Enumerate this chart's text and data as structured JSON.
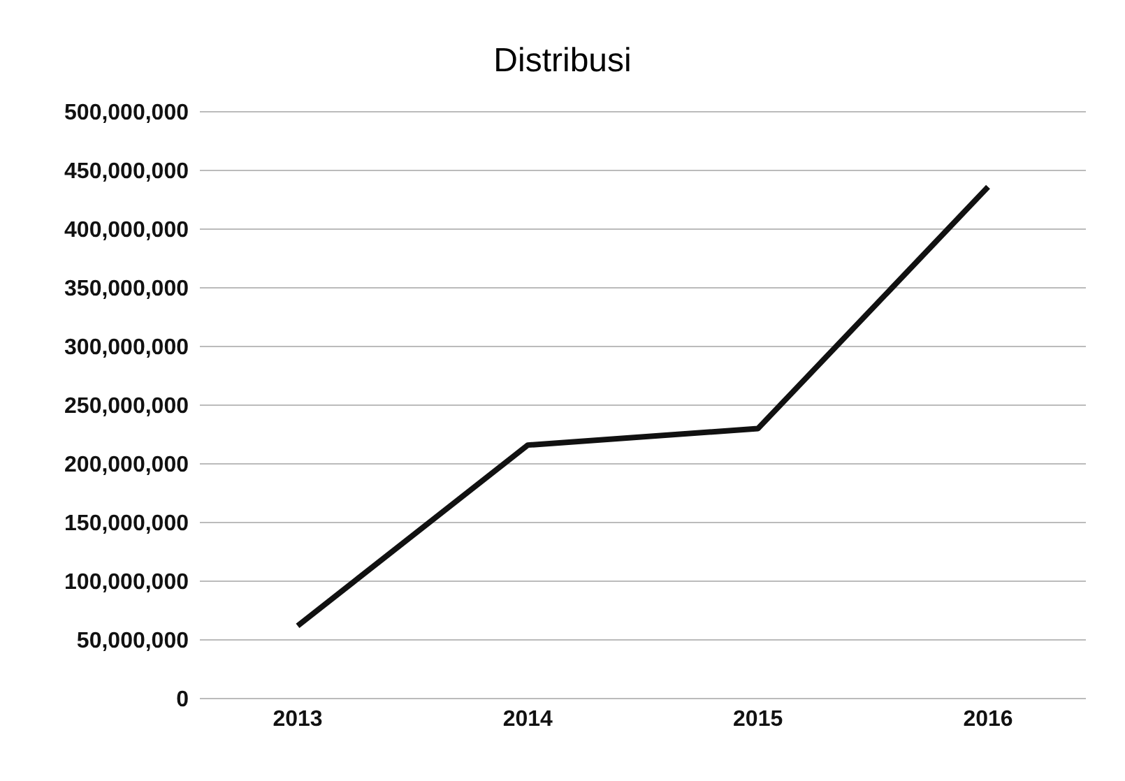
{
  "chart_data": {
    "type": "line",
    "title": "Distribusi",
    "categories": [
      "2013",
      "2014",
      "2015",
      "2016"
    ],
    "series": [
      {
        "color": "#111111",
        "values": [
          62000000,
          216000000,
          230000000,
          436000000
        ]
      }
    ],
    "ylim": [
      0,
      500000000
    ],
    "yticks": [
      0,
      {
        "value": 50000000,
        "label": "50,000,000"
      },
      {
        "value": 100000000,
        "label": "100,000,000"
      },
      {
        "value": 150000000,
        "label": "150,000,000"
      },
      {
        "value": 200000000,
        "label": "200,000,000"
      },
      {
        "value": 250000000,
        "label": "250,000,000"
      },
      {
        "value": 300000000,
        "label": "300,000,000"
      },
      {
        "value": 350000000,
        "label": "350,000,000"
      },
      {
        "value": 400000000,
        "label": "400,000,000"
      },
      {
        "value": 450000000,
        "label": "450,000,000"
      },
      {
        "value": 500000000,
        "label": "500,000,000"
      }
    ],
    "grid": "y",
    "legend": false,
    "marker": "none",
    "line_style": "solid"
  }
}
